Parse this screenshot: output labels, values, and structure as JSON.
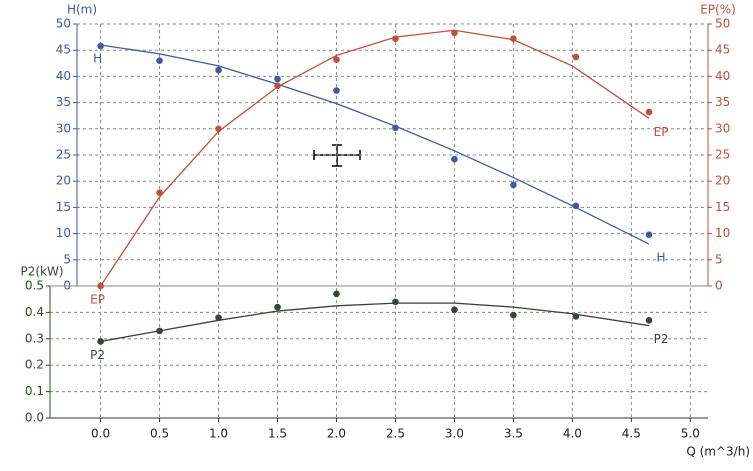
{
  "chart_data": {
    "type": "line",
    "x_label": "Q (m^3/h)",
    "xlim": [
      -0.2,
      5.15
    ],
    "xticks": [
      {
        "value": 0,
        "label": "0.0"
      },
      0.5,
      {
        "value": 1,
        "label": "1.0"
      },
      1.5,
      {
        "value": 2,
        "label": "2.0"
      },
      2.5,
      {
        "value": 3,
        "label": "3.0"
      },
      3.5,
      {
        "value": 4,
        "label": "4.0"
      },
      4.5,
      {
        "value": 5,
        "label": "5.0"
      }
    ],
    "y_label": "H(m)",
    "ylim": [
      0,
      50
    ],
    "yticks": [
      0,
      5,
      10,
      15,
      20,
      25,
      30,
      35,
      40,
      45,
      50
    ],
    "y2_label": "EP(%)",
    "y2lim": [
      0,
      50
    ],
    "y2ticks": [
      0,
      5,
      10,
      15,
      20,
      25,
      30,
      35,
      40,
      45,
      50
    ],
    "y3_label": "P2(kW)",
    "y3lim": [
      0,
      0.5
    ],
    "y3ticks": [
      {
        "value": 0,
        "label": "0.0"
      },
      0.1,
      0.2,
      0.3,
      0.4,
      0.5
    ],
    "grid": true,
    "x": [
      0,
      0.5,
      1,
      1.5,
      2,
      2.5,
      3,
      3.5,
      4,
      4.65
    ],
    "point_x": [
      0,
      0.5,
      1,
      1.5,
      2,
      2.5,
      3,
      3.5,
      4.03,
      4.65
    ],
    "series": [
      {
        "name": "H",
        "color": "#3a5ca8",
        "axis": "y",
        "values": [
          46,
          44.3,
          42,
          38.5,
          34.8,
          30.5,
          25.8,
          20.7,
          15.3,
          8
        ],
        "points": [
          45.8,
          43,
          41.2,
          39.5,
          37.3,
          30.2,
          24.2,
          19.3,
          15.3,
          9.8
        ]
      },
      {
        "name": "EP",
        "color": "#c0503a",
        "axis": "y2",
        "values": [
          0,
          17,
          29.5,
          38,
          44,
          47.5,
          48.8,
          47,
          42,
          32
        ],
        "points": [
          0,
          17.8,
          30,
          38.2,
          43.2,
          47.2,
          48.3,
          47.2,
          43.7,
          33.2
        ]
      },
      {
        "name": "P2",
        "color": "#2f4a2f",
        "axis": "y3",
        "values": [
          0.29,
          0.33,
          0.37,
          0.405,
          0.425,
          0.435,
          0.435,
          0.42,
          0.395,
          0.35
        ],
        "points": [
          0.29,
          0.33,
          0.38,
          0.42,
          0.47,
          0.44,
          0.41,
          0.39,
          0.385,
          0.37
        ]
      }
    ]
  }
}
